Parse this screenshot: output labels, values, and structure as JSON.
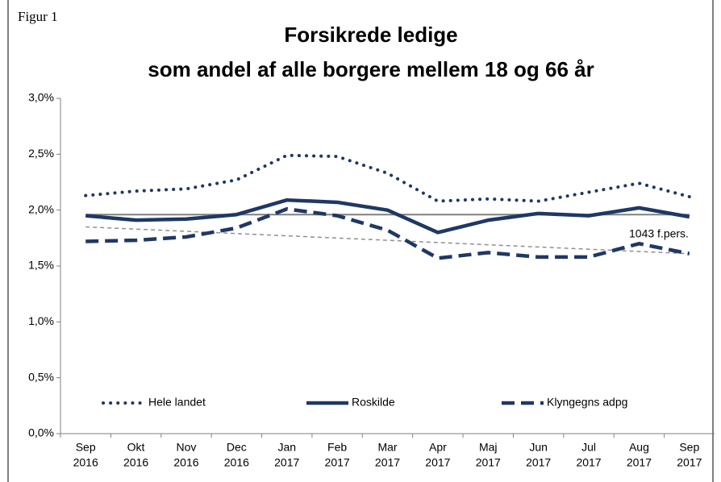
{
  "label": "Figur 1",
  "chart_data": {
    "type": "line",
    "title": [
      "Forsikrede ledige",
      "som andel af alle borgere mellem 18 og 66 år"
    ],
    "categories": [
      [
        "Sep",
        "2016"
      ],
      [
        "Okt",
        "2016"
      ],
      [
        "Nov",
        "2016"
      ],
      [
        "Dec",
        "2016"
      ],
      [
        "Jan",
        "2017"
      ],
      [
        "Feb",
        "2017"
      ],
      [
        "Mar",
        "2017"
      ],
      [
        "Apr",
        "2017"
      ],
      [
        "Maj",
        "2017"
      ],
      [
        "Jun",
        "2017"
      ],
      [
        "Jul",
        "2017"
      ],
      [
        "Aug",
        "2017"
      ],
      [
        "Sep",
        "2017"
      ]
    ],
    "series": [
      {
        "name": "Hele landet",
        "color": "#1f3864",
        "style": "dotted",
        "values": [
          2.13,
          2.17,
          2.19,
          2.27,
          2.49,
          2.48,
          2.33,
          2.08,
          2.1,
          2.08,
          2.16,
          2.24,
          2.12
        ]
      },
      {
        "name": "Roskilde",
        "color": "#1f3864",
        "style": "solid",
        "values": [
          1.95,
          1.91,
          1.92,
          1.96,
          2.09,
          2.07,
          2.0,
          1.8,
          1.91,
          1.97,
          1.95,
          2.02,
          1.94
        ]
      },
      {
        "name": "Klyngegns adpg",
        "color": "#1f3864",
        "style": "dashed",
        "values": [
          1.72,
          1.73,
          1.76,
          1.84,
          2.01,
          1.95,
          1.82,
          1.57,
          1.62,
          1.58,
          1.58,
          1.7,
          1.61
        ]
      },
      {
        "color": "#808080",
        "style": "thin",
        "values": [
          1.96,
          1.96,
          1.96,
          1.96,
          1.96,
          1.96,
          1.96,
          1.96,
          1.96,
          1.96,
          1.96,
          1.96,
          1.96
        ]
      },
      {
        "color": "#909090",
        "style": "thin-dashed",
        "values": [
          1.85,
          1.83,
          1.81,
          1.79,
          1.77,
          1.75,
          1.73,
          1.71,
          1.69,
          1.67,
          1.65,
          1.63,
          1.61
        ]
      }
    ],
    "annotations": [
      "1043 f.pers."
    ],
    "ylim": [
      0,
      3
    ],
    "yticks": [
      {
        "value": 0,
        "label": "0,0%"
      },
      {
        "value": 0.5,
        "label": "0,5%"
      },
      {
        "value": 1,
        "label": "1,0%"
      },
      {
        "value": 1.5,
        "label": "1,5%"
      },
      {
        "value": 2,
        "label": "2,0%"
      },
      {
        "value": 2.5,
        "label": "2,5%"
      },
      {
        "value": 3,
        "label": "3,0%"
      }
    ],
    "legend": "bottom",
    "grid": false
  }
}
